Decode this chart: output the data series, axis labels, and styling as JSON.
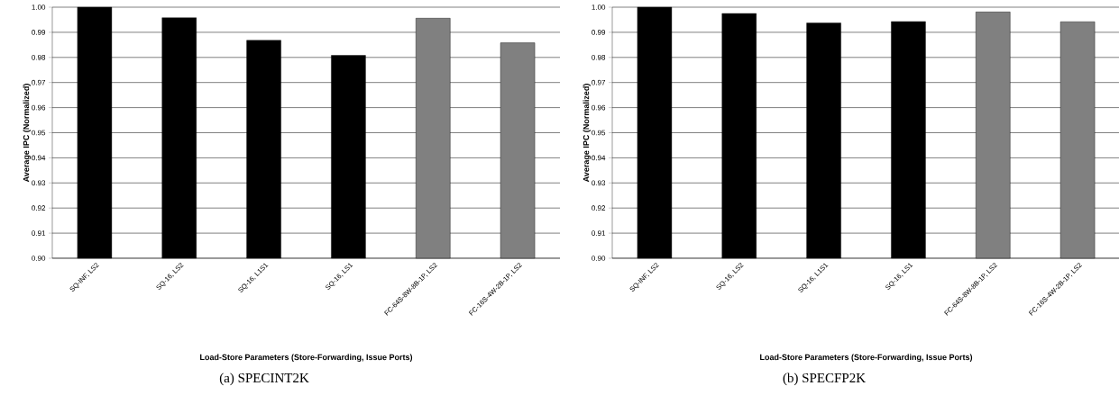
{
  "chart_data": [
    {
      "type": "bar",
      "xlabel": "Load-Store Parameters (Store-Forwarding, Issue Ports)",
      "ylabel": "Average IPC (Normalized)",
      "annotations": [
        "(a)  SPECINT2K"
      ],
      "categories": [
        "SQ-INF, LS2",
        "SQ-16, LS2",
        "SQ-16, L1S1",
        "SQ-16, LS1",
        "FC-64S-8W-8B-1P, LS2",
        "FC-16S-4W-2B-1P, LS2"
      ],
      "values": [
        1.0,
        0.9958,
        0.9868,
        0.9808,
        0.9956,
        0.9858
      ],
      "colors": [
        "#000000",
        "#000000",
        "#000000",
        "#000000",
        "#808080",
        "#808080"
      ],
      "ylim": [
        0.9,
        1.0
      ],
      "yticks": [
        {
          "value": 0.9,
          "label": "0.90"
        },
        {
          "value": 0.91,
          "label": "0.91"
        },
        {
          "value": 0.92,
          "label": "0.92"
        },
        {
          "value": 0.93,
          "label": "0.93"
        },
        {
          "value": 0.94,
          "label": "0.94"
        },
        {
          "value": 0.95,
          "label": "0.95"
        },
        {
          "value": 0.96,
          "label": "0.96"
        },
        {
          "value": 0.97,
          "label": "0.97"
        },
        {
          "value": 0.98,
          "label": "0.98"
        },
        {
          "value": 0.99,
          "label": "0.99"
        },
        {
          "value": 1.0,
          "label": "1.00"
        }
      ],
      "grid": "y"
    },
    {
      "type": "bar",
      "xlabel": "Load-Store Parameters (Store-Forwarding, Issue Ports)",
      "ylabel": "Average IPC (Normalized)",
      "annotations": [
        "(b)  SPECFP2K"
      ],
      "categories": [
        "SQ-INF, LS2",
        "SQ-16, LS2",
        "SQ-16, L1S1",
        "SQ-16, LS1",
        "FC-64S-8W-8B-1P, LS2",
        "FC-16S-4W-2B-1P, LS2"
      ],
      "values": [
        1.0,
        0.9975,
        0.9937,
        0.9943,
        0.9981,
        0.9942
      ],
      "colors": [
        "#000000",
        "#000000",
        "#000000",
        "#000000",
        "#808080",
        "#808080"
      ],
      "ylim": [
        0.9,
        1.0
      ],
      "yticks": [
        {
          "value": 0.9,
          "label": "0.90"
        },
        {
          "value": 0.91,
          "label": "0.91"
        },
        {
          "value": 0.92,
          "label": "0.92"
        },
        {
          "value": 0.93,
          "label": "0.93"
        },
        {
          "value": 0.94,
          "label": "0.94"
        },
        {
          "value": 0.95,
          "label": "0.95"
        },
        {
          "value": 0.96,
          "label": "0.96"
        },
        {
          "value": 0.97,
          "label": "0.97"
        },
        {
          "value": 0.98,
          "label": "0.98"
        },
        {
          "value": 0.99,
          "label": "0.99"
        },
        {
          "value": 1.0,
          "label": "1.00"
        }
      ],
      "grid": "y"
    }
  ]
}
